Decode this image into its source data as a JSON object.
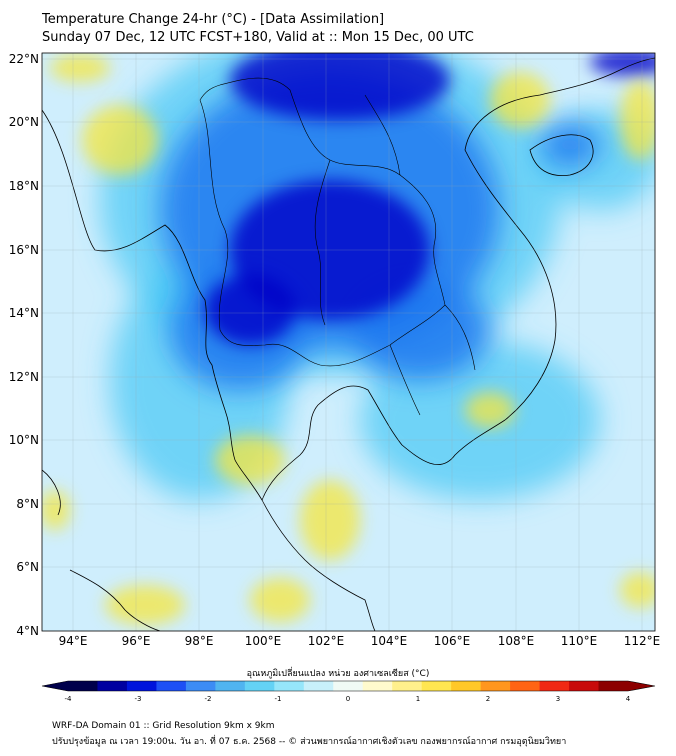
{
  "header": {
    "line1": "Temperature Change 24-hr (°C) - [Data Assimilation]",
    "line2": "Sunday 07 Dec, 12 UTC FCST+180, Valid at :: Mon 15 Dec, 00 UTC"
  },
  "map": {
    "lat_labels": [
      "22°N",
      "20°N",
      "18°N",
      "16°N",
      "14°N",
      "12°N",
      "10°N",
      "8°N",
      "6°N",
      "4°N"
    ],
    "lon_labels": [
      "94°E",
      "96°E",
      "98°E",
      "100°E",
      "102°E",
      "104°E",
      "106°E",
      "108°E",
      "110°E",
      "112°E"
    ],
    "background_color": "#cfeefd",
    "color_cool_strong": "#0000c8",
    "color_cool": "#1e78f0",
    "color_cool_light": "#46c8f5",
    "color_warm": "#f5e63c"
  },
  "colorbar": {
    "title": "อุณหภูมิเปลี่ยนแปลง หน่วย องศาเซลเซียส (°C)",
    "ticks": [
      "-4",
      "-3",
      "-2",
      "-1",
      "0",
      "1",
      "2",
      "3",
      "4"
    ],
    "colors": [
      "#00004b",
      "#0000a0",
      "#0014dc",
      "#1e50f5",
      "#3c8cf5",
      "#50b4f0",
      "#64d2f5",
      "#96e6fa",
      "#c8f0fa",
      "#f0faf5",
      "#fffacd",
      "#fff08c",
      "#ffe650",
      "#ffc828",
      "#ff961e",
      "#ff6414",
      "#f02814",
      "#c80a0a",
      "#8c0000"
    ]
  },
  "footer": {
    "line1": "WRF-DA Domain 01 :: Grid Resolution 9km x 9km",
    "line2": "ปรับปรุงข้อมูล ณ เวลา 19:00น. วัน อา. ที่ 07 ธ.ค. 2568 -- © ส่วนพยากรณ์อากาศเชิงตัวเลข กองพยากรณ์อากาศ กรมอุตุนิยมวิทยา"
  }
}
